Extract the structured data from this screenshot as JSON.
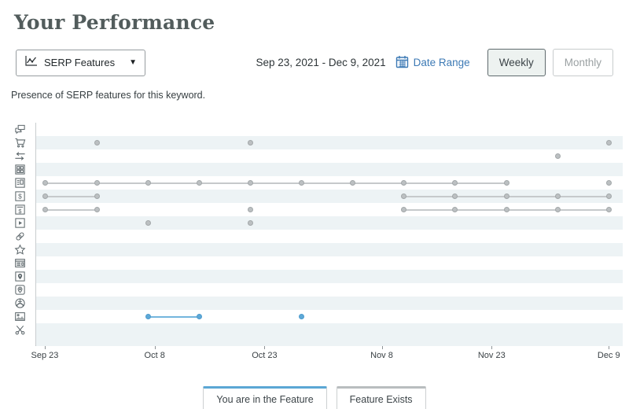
{
  "page": {
    "title": "Your Performance"
  },
  "controls": {
    "metric_dropdown": {
      "label": "SERP Features",
      "icon": "line-chart-icon"
    },
    "date_range_text": "Sep 23, 2021 - Dec 9, 2021",
    "date_range_link": "Date Range",
    "calendar_icon": "calendar-icon",
    "granularity": [
      {
        "label": "Weekly",
        "selected": true
      },
      {
        "label": "Monthly",
        "selected": false
      }
    ]
  },
  "description": "Presence of SERP features for this keyword.",
  "chart_data": {
    "type": "timeline-dot",
    "title": "Presence of SERP features for this keyword",
    "x_axis": {
      "tick_labels": [
        "Sep 23",
        "Oct 8",
        "Oct 23",
        "Nov 8",
        "Nov 23",
        "Dec 9"
      ],
      "tick_days": [
        0,
        15,
        30,
        46,
        61,
        77
      ],
      "total_days": 77,
      "point_interval_days": 7
    },
    "weekly_points": [
      "Sep 23",
      "Sep 30",
      "Oct 7",
      "Oct 14",
      "Oct 21",
      "Oct 28",
      "Nov 4",
      "Nov 11",
      "Nov 18",
      "Nov 25",
      "Dec 2",
      "Dec 9"
    ],
    "series_colors": {
      "you_in_feature": "#5ba7d4",
      "feature_exists": "#b9bdbf"
    },
    "rows": [
      {
        "icon": "related-questions-icon",
        "series": "exists",
        "segments": [],
        "points": []
      },
      {
        "icon": "shopping-results-icon",
        "series": "exists",
        "segments": [],
        "points": [
          1,
          4,
          11
        ]
      },
      {
        "icon": "swap-arrows-icon",
        "series": "exists",
        "segments": [],
        "points": [
          10
        ]
      },
      {
        "icon": "image-pack-icon",
        "series": "exists",
        "segments": [],
        "points": []
      },
      {
        "icon": "knowledge-panel-icon",
        "series": "exists",
        "segments": [
          [
            0,
            9
          ]
        ],
        "points": [
          11
        ]
      },
      {
        "icon": "ads-top-icon",
        "series": "exists",
        "segments": [
          [
            0,
            1
          ],
          [
            7,
            11
          ]
        ],
        "points": []
      },
      {
        "icon": "ads-bottom-icon",
        "series": "exists",
        "segments": [
          [
            0,
            1
          ],
          [
            7,
            11
          ]
        ],
        "points": [
          4
        ]
      },
      {
        "icon": "video-icon",
        "series": "exists",
        "segments": [],
        "points": [
          2,
          4
        ]
      },
      {
        "icon": "sitelinks-icon",
        "series": "exists",
        "segments": [],
        "points": []
      },
      {
        "icon": "reviews-icon",
        "series": "exists",
        "segments": [],
        "points": []
      },
      {
        "icon": "news-box-icon",
        "series": "exists",
        "segments": [],
        "points": []
      },
      {
        "icon": "local-pack-icon",
        "series": "exists",
        "segments": [],
        "points": []
      },
      {
        "icon": "local-teaser-icon",
        "series": "exists",
        "segments": [],
        "points": []
      },
      {
        "icon": "knowledge-card-icon",
        "series": "exists",
        "segments": [],
        "points": []
      },
      {
        "icon": "featured-image-icon",
        "series": "you",
        "segments": [
          [
            2,
            3
          ]
        ],
        "points": [
          5
        ]
      },
      {
        "icon": "featured-snippet-icon",
        "series": "exists",
        "segments": [],
        "points": []
      }
    ]
  },
  "legend": {
    "you_in_feature": "You are in the Feature",
    "feature_exists": "Feature Exists"
  }
}
